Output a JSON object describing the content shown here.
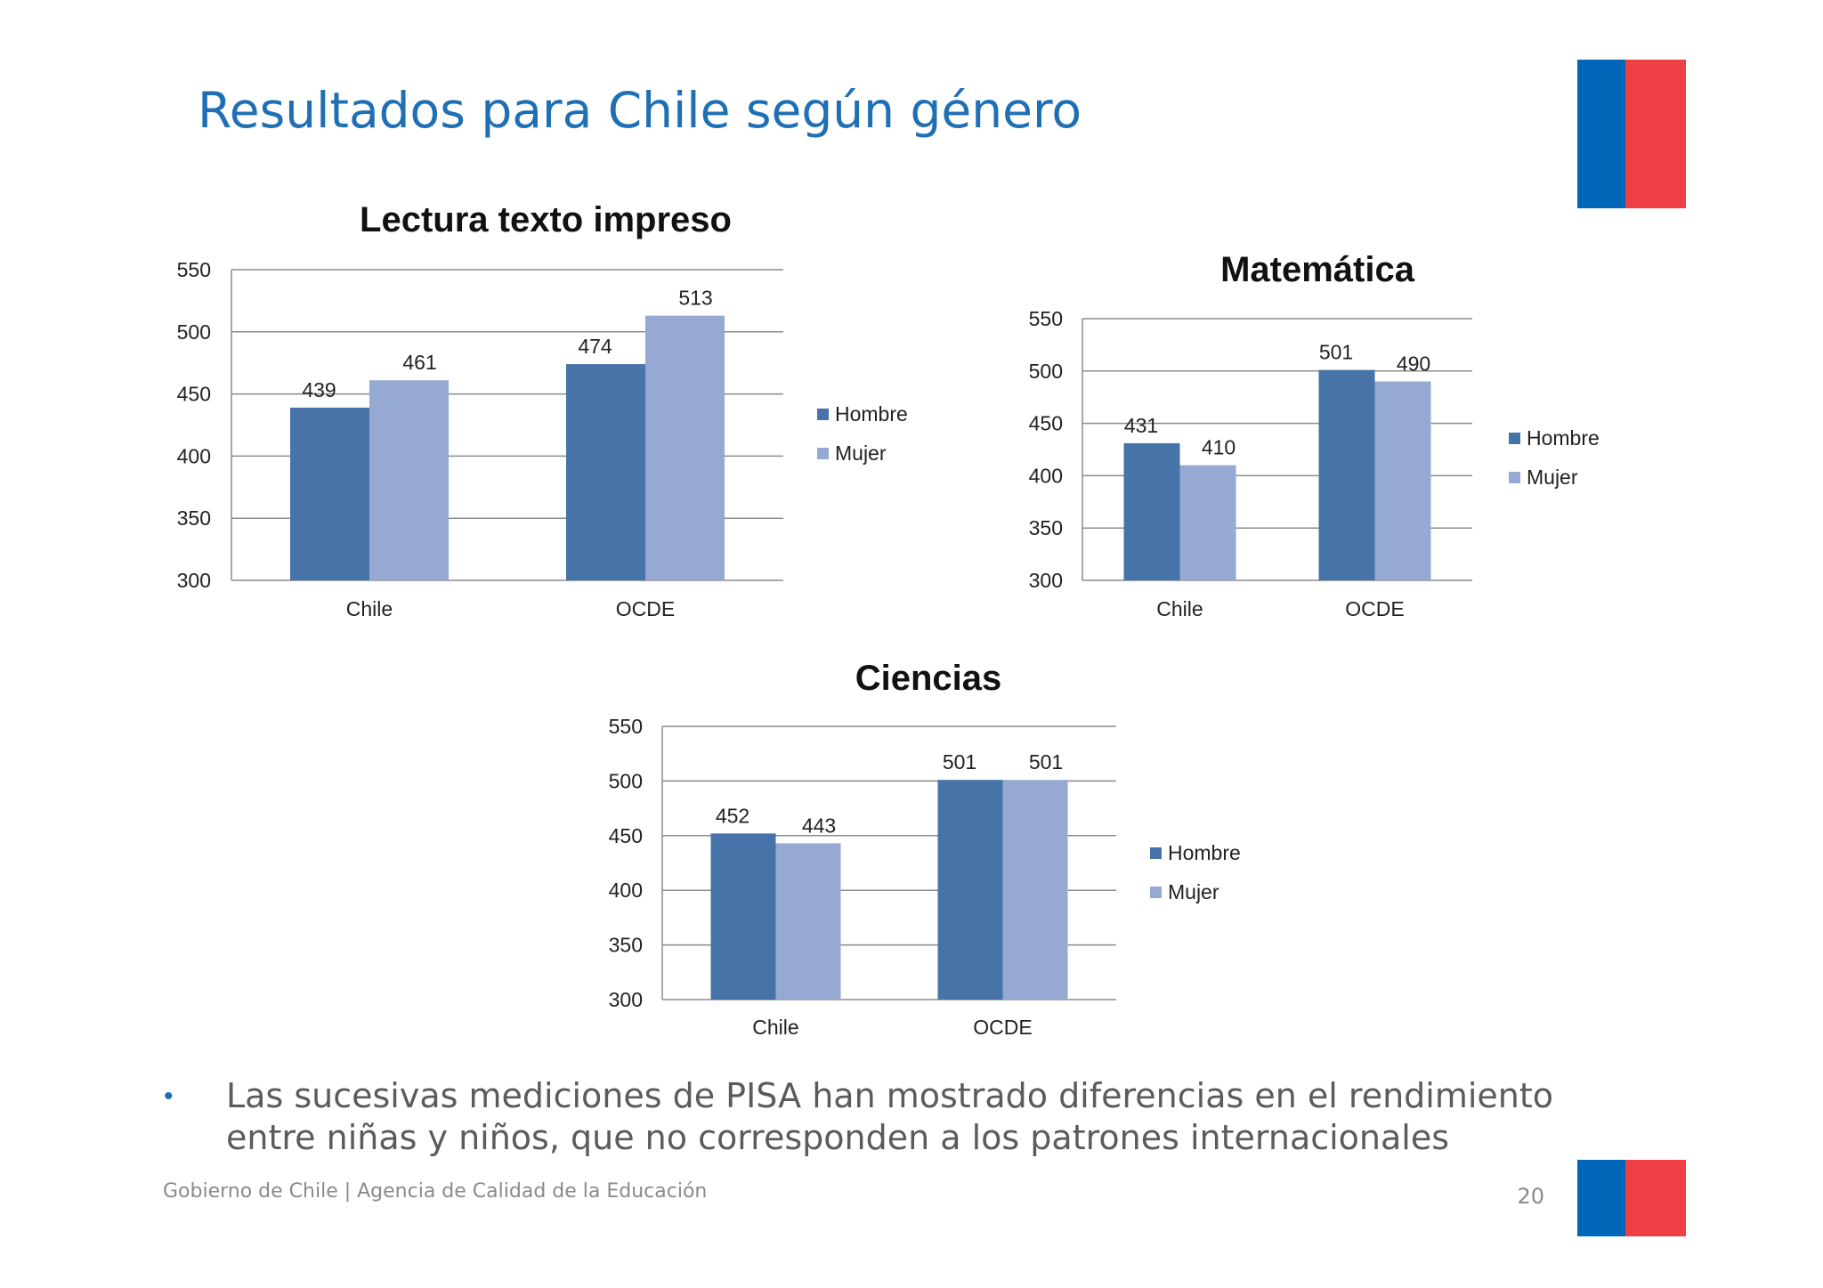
{
  "slide": {
    "title": "Resultados para Chile según género",
    "bullet": "Las sucesivas mediciones de PISA han mostrado diferencias en el rendimiento entre niñas y niños, que no corresponden a los patrones internacionales",
    "footer": "Gobierno de Chile | Agencia de Calidad de la Educación",
    "page_number": "20",
    "flag_colors": {
      "blue": "#0067b8",
      "red": "#ef4046"
    }
  },
  "chart_data": [
    {
      "id": "lectura",
      "type": "bar",
      "title": "Lectura texto impreso",
      "categories": [
        "Chile",
        "OCDE"
      ],
      "series": [
        {
          "name": "Hombre",
          "values": [
            439,
            474
          ],
          "color": "#4673a8"
        },
        {
          "name": "Mujer",
          "values": [
            461,
            513
          ],
          "color": "#95a9d2"
        }
      ],
      "ylim": [
        300,
        550
      ],
      "yticks": [
        300,
        350,
        400,
        450,
        500,
        550
      ],
      "grid": true,
      "legend": "right"
    },
    {
      "id": "matematica",
      "type": "bar",
      "title": "Matemática",
      "categories": [
        "Chile",
        "OCDE"
      ],
      "series": [
        {
          "name": "Hombre",
          "values": [
            431,
            501
          ],
          "color": "#4673a8"
        },
        {
          "name": "Mujer",
          "values": [
            410,
            490
          ],
          "color": "#95a9d2"
        }
      ],
      "ylim": [
        300,
        550
      ],
      "yticks": [
        300,
        350,
        400,
        450,
        500,
        550
      ],
      "grid": true,
      "legend": "right"
    },
    {
      "id": "ciencias",
      "type": "bar",
      "title": "Ciencias",
      "categories": [
        "Chile",
        "OCDE"
      ],
      "series": [
        {
          "name": "Hombre",
          "values": [
            452,
            501
          ],
          "color": "#4673a8"
        },
        {
          "name": "Mujer",
          "values": [
            443,
            501
          ],
          "color": "#95a9d2"
        }
      ],
      "ylim": [
        300,
        550
      ],
      "yticks": [
        300,
        350,
        400,
        450,
        500,
        550
      ],
      "grid": true,
      "legend": "right"
    }
  ]
}
